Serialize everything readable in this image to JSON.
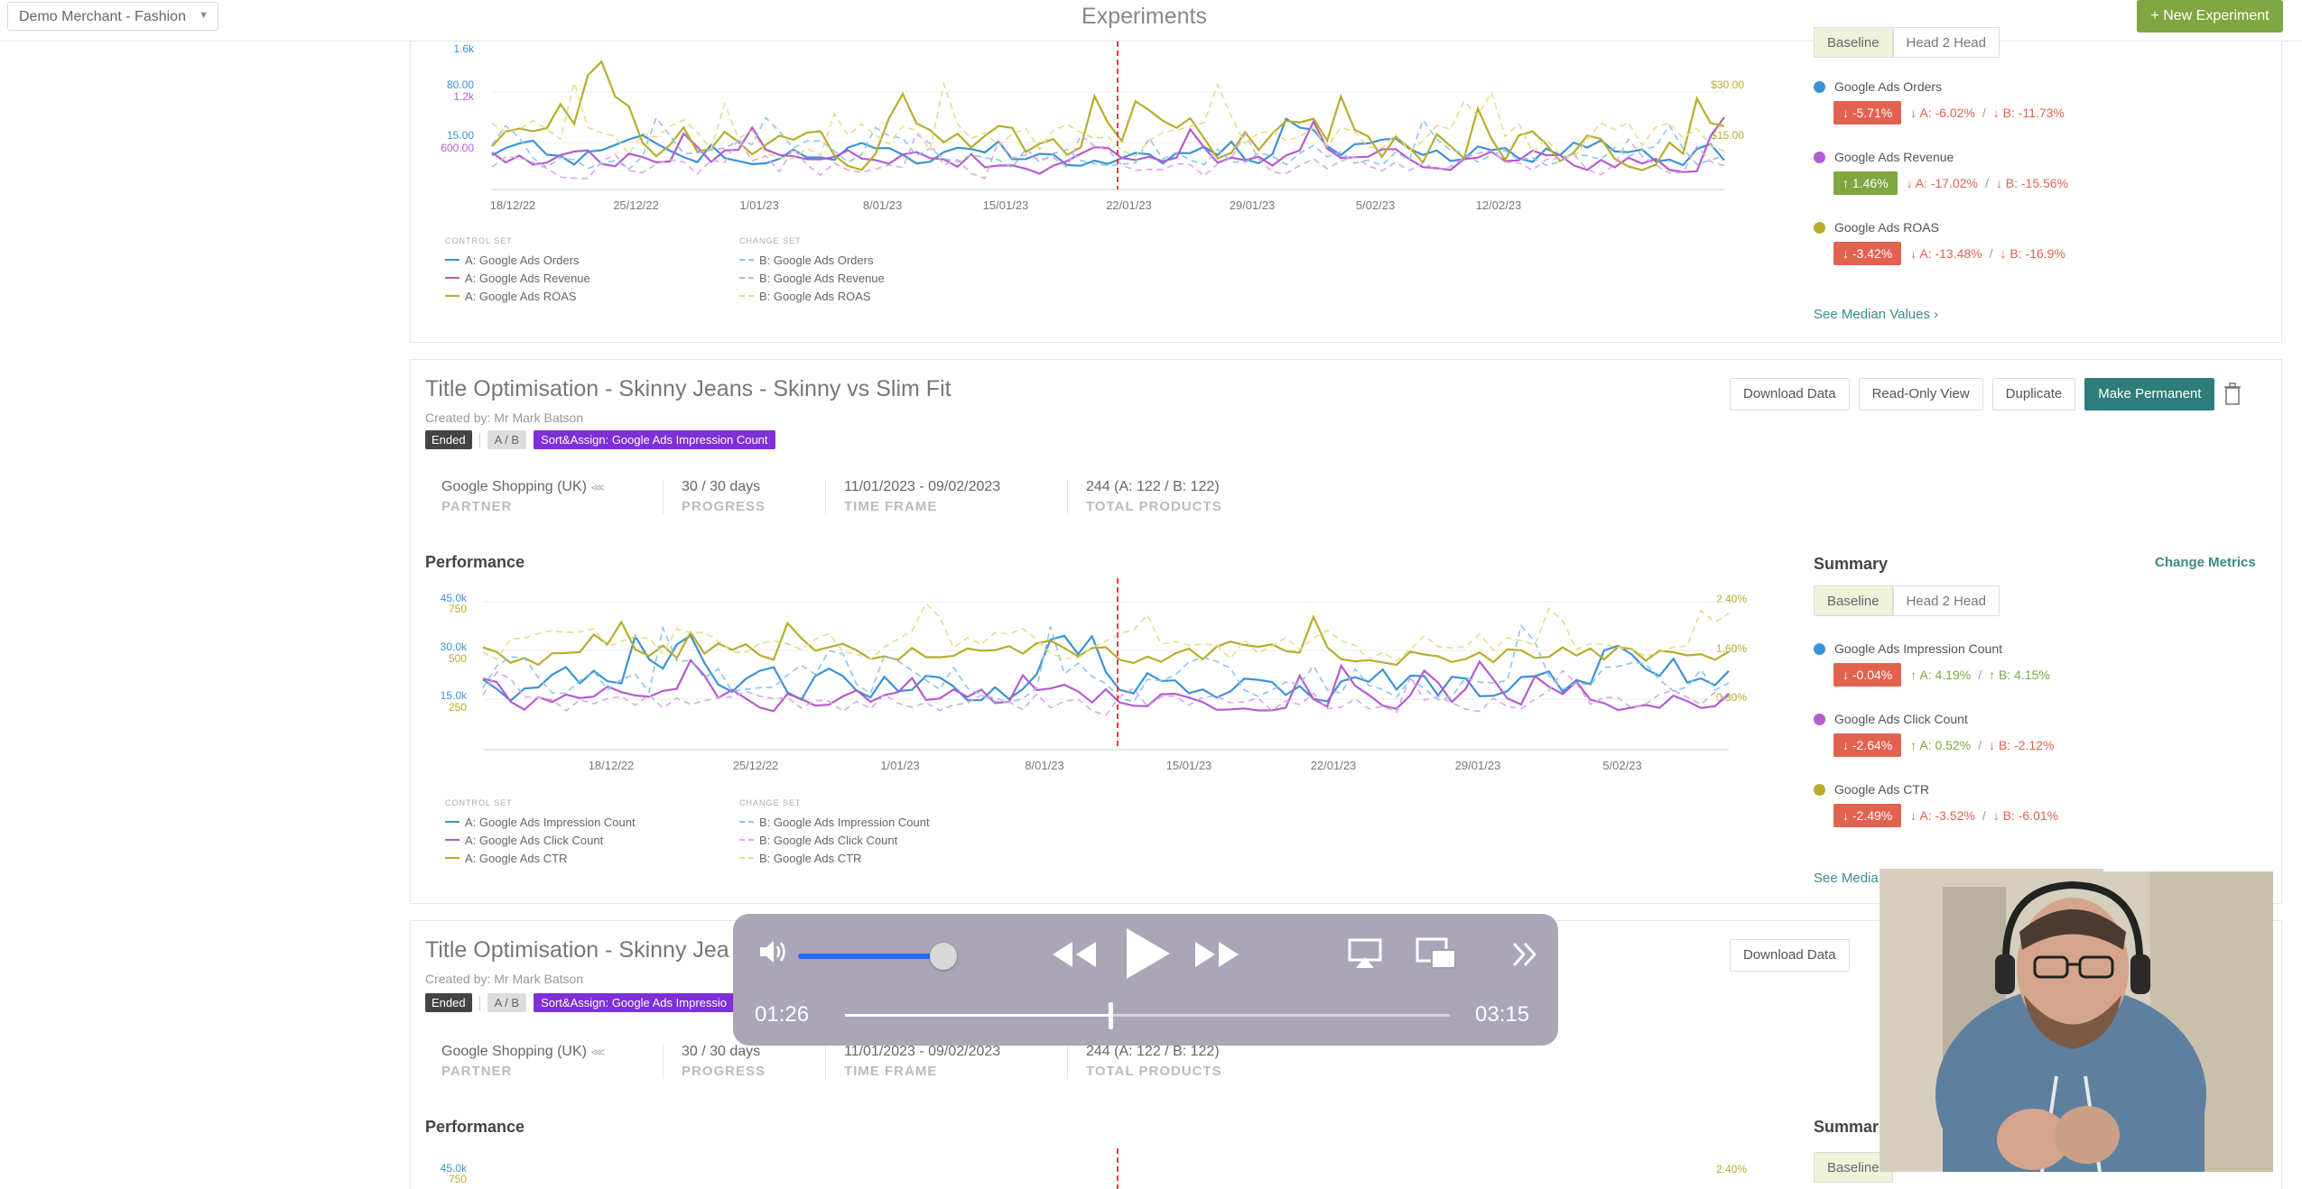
{
  "header": {
    "merchant": "Demo Merchant - Fashion",
    "page_title": "Experiments",
    "new_experiment": "+ New Experiment"
  },
  "colors": {
    "blue": "#3b93d6",
    "purple": "#b45ccf",
    "olive": "#b8ad2c",
    "accent_green": "#7fa640",
    "accent_teal": "#2e7d7a",
    "negative": "#e26250",
    "sort_purple": "#7e2fd8"
  },
  "card1": {
    "tabs": [
      "Baseline",
      "Head 2 Head"
    ],
    "legend": {
      "control_header": "CONTROL SET",
      "change_header": "CHANGE SET",
      "control": [
        "A: Google Ads Orders",
        "A: Google Ads Revenue",
        "A: Google Ads ROAS"
      ],
      "change": [
        "B: Google Ads Orders",
        "B: Google Ads Revenue",
        "B: Google Ads ROAS"
      ]
    },
    "metrics": [
      {
        "name": "Google Ads Orders",
        "diff": "↓ -5.71%",
        "a": "↓ A: -6.02%",
        "b": "↓ B: -11.73%",
        "sep": "/"
      },
      {
        "name": "Google Ads Revenue",
        "diff": "↑ 1.46%",
        "a": "↓ A: -17.02%",
        "b": "↓ B: -15.56%",
        "sep": "/"
      },
      {
        "name": "Google Ads ROAS",
        "diff": "↓ -3.42%",
        "a": "↓ A: -13.48%",
        "b": "↓ B: -16.9%",
        "sep": "/"
      }
    ],
    "see_median": "See Median Values  ›"
  },
  "card2": {
    "title": "Title Optimisation - Skinny Jeans - Skinny vs Slim Fit",
    "created_by": "Created by: Mr Mark Batson",
    "status": "Ended",
    "ab": "A / B",
    "sort": "Sort&Assign: Google Ads Impression Count",
    "info": {
      "partner_val": "Google Shopping (UK)",
      "partner_lbl": "PARTNER",
      "progress_val": "30 / 30 days",
      "progress_lbl": "PROGRESS",
      "timeframe_val": "11/01/2023 - 09/02/2023",
      "timeframe_lbl": "TIME FRAME",
      "products_val": "244 (A: 122 / B: 122)",
      "products_lbl": "TOTAL PRODUCTS"
    },
    "buttons": {
      "download": "Download Data",
      "readonly": "Read-Only View",
      "duplicate": "Duplicate",
      "permanent": "Make Permanent"
    },
    "performance": "Performance",
    "summary": "Summary",
    "change_metrics": "Change Metrics",
    "tabs": [
      "Baseline",
      "Head 2 Head"
    ],
    "legend": {
      "control_header": "CONTROL SET",
      "change_header": "CHANGE SET",
      "control": [
        "A: Google Ads Impression Count",
        "A: Google Ads Click Count",
        "A: Google Ads CTR"
      ],
      "change": [
        "B: Google Ads Impression Count",
        "B: Google Ads Click Count",
        "B: Google Ads CTR"
      ]
    },
    "metrics": [
      {
        "name": "Google Ads Impression Count",
        "diff": "↓ -0.04%",
        "a": "↑ A: 4.19%",
        "b": "↑ B: 4.15%",
        "sep": "/"
      },
      {
        "name": "Google Ads Click Count",
        "diff": "↓ -2.64%",
        "a": "↑ A: 0.52%",
        "b": "↓ B: -2.12%",
        "sep": "/"
      },
      {
        "name": "Google Ads CTR",
        "diff": "↓ -2.49%",
        "a": "↓ A: -3.52%",
        "b": "↓ B: -6.01%",
        "sep": "/"
      }
    ],
    "see_median": "See Media"
  },
  "card3": {
    "title": "Title Optimisation - Skinny Jea",
    "created_by": "Created by: Mr Mark Batson",
    "status": "Ended",
    "ab": "A / B",
    "sort": "Sort&Assign: Google Ads Impressio",
    "info": {
      "partner_val": "Google Shopping (UK)",
      "partner_lbl": "PARTNER",
      "progress_val": "30 / 30 days",
      "progress_lbl": "PROGRESS",
      "timeframe_val": "11/01/2023 - 09/02/2023",
      "timeframe_lbl": "TIME FRAME",
      "products_val": "244 (A: 122 / B: 122)",
      "products_lbl": "TOTAL PRODUCTS"
    },
    "download": "Download Data",
    "performance": "Performance",
    "summary": "Summar",
    "tab": "Baseline"
  },
  "player": {
    "elapsed": "01:26",
    "total": "03:15",
    "progress": 0.44,
    "volume": 0.82
  },
  "chart_data": [
    {
      "type": "line",
      "title": "",
      "x_ticks": [
        "18/12/22",
        "25/12/22",
        "1/01/23",
        "8/01/23",
        "15/01/23",
        "22/01/23",
        "29/01/23",
        "5/02/23",
        "12/02/23"
      ],
      "y_left_ticks_orders": [
        "1.6k",
        "1.2k",
        "600.00"
      ],
      "y_left_ticks_revenue": [
        "80.00",
        "15.00"
      ],
      "y_right_ticks": [
        "$30.00",
        "$15.00"
      ],
      "marker_date": "15/01/23",
      "grid": true
    },
    {
      "type": "line",
      "title": "",
      "x_ticks": [
        "18/12/22",
        "25/12/22",
        "1/01/23",
        "8/01/23",
        "15/01/23",
        "22/01/23",
        "29/01/23",
        "5/02/23"
      ],
      "y_left_ticks_impressions": [
        "45.0k",
        "30.0k",
        "15.0k"
      ],
      "y_left_ticks_clicks": [
        "750",
        "500",
        "250"
      ],
      "y_right_ticks": [
        "2.40%",
        "1.60%",
        "0.80%"
      ],
      "marker_date": "8/01/23",
      "grid": true
    },
    {
      "type": "line",
      "title": "",
      "y_left_ticks_impressions": [
        "45.0k"
      ],
      "y_left_ticks_clicks": [
        "750"
      ],
      "y_right_ticks": [
        "2.40%"
      ]
    }
  ]
}
